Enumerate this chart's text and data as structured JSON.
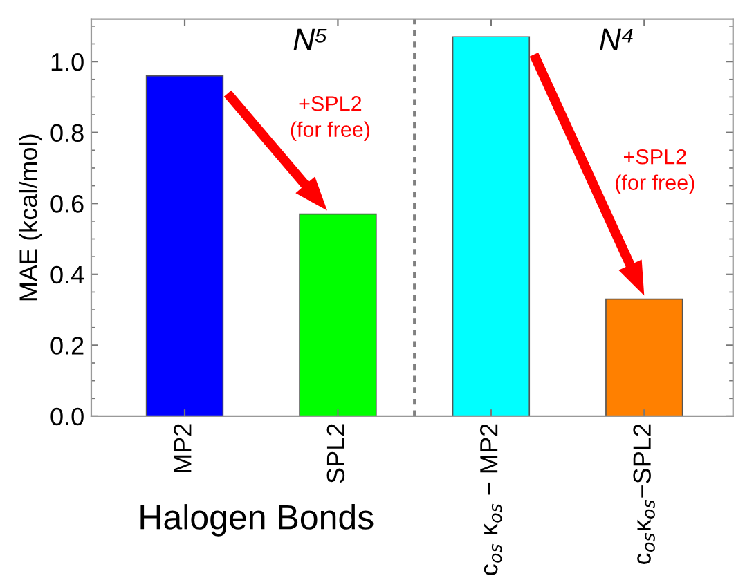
{
  "chart_data": {
    "type": "bar",
    "ylabel": "MAE (kcal/mol)",
    "xlabel": "Halogen Bonds",
    "categories": [
      "MP2",
      "SPL2",
      "c$_{os}$ κ$_{os}$ − MP2",
      "c$_{os}$κ$_{os}$−SPL2"
    ],
    "values": [
      0.96,
      0.57,
      1.07,
      0.33
    ],
    "colors": [
      "#0000ff",
      "#00ff00",
      "#00ffff",
      "#ff8000"
    ],
    "ylim": [
      0,
      1.12
    ],
    "yticks": [
      {
        "value": 0,
        "label": "0.0"
      },
      0.2,
      0.4,
      0.6,
      0.8,
      {
        "value": 1,
        "label": "1.0"
      }
    ],
    "annotations": [
      "N⁵",
      "N⁴",
      "+SPL2\n(for free)",
      "+SPL2\n(for free)"
    ]
  }
}
